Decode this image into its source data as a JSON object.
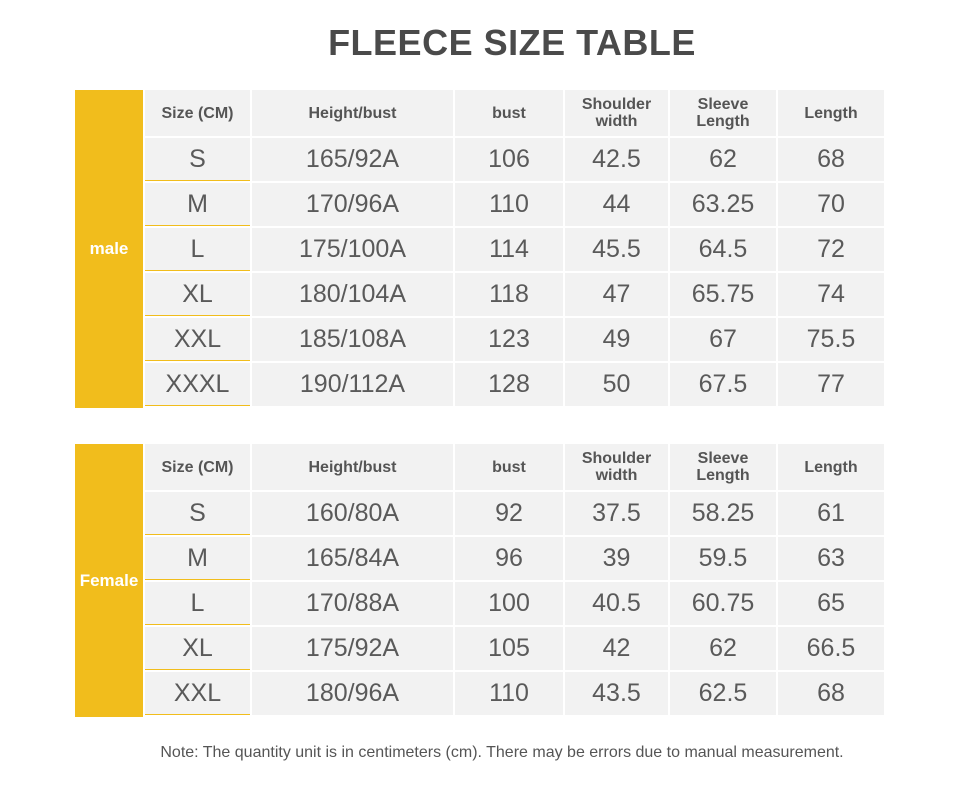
{
  "title": "FLEECE SIZE TABLE",
  "sections": [
    {
      "label": "male",
      "header": [
        "Size (CM)",
        "Height/bust",
        "bust",
        "Shoulder width",
        "Sleeve Length",
        "Length"
      ],
      "rows": [
        [
          "S",
          "165/92A",
          "106",
          "42.5",
          "62",
          "68"
        ],
        [
          "M",
          "170/96A",
          "110",
          "44",
          "63.25",
          "70"
        ],
        [
          "L",
          "175/100A",
          "114",
          "45.5",
          "64.5",
          "72"
        ],
        [
          "XL",
          "180/104A",
          "118",
          "47",
          "65.75",
          "74"
        ],
        [
          "XXL",
          "185/108A",
          "123",
          "49",
          "67",
          "75.5"
        ],
        [
          "XXXL",
          "190/112A",
          "128",
          "50",
          "67.5",
          "77"
        ]
      ]
    },
    {
      "label": "Female",
      "header": [
        "Size (CM)",
        "Height/bust",
        "bust",
        "Shoulder width",
        "Sleeve Length",
        "Length"
      ],
      "rows": [
        [
          "S",
          "160/80A",
          "92",
          "37.5",
          "58.25",
          "61"
        ],
        [
          "M",
          "165/84A",
          "96",
          "39",
          "59.5",
          "63"
        ],
        [
          "L",
          "170/88A",
          "100",
          "40.5",
          "60.75",
          "65"
        ],
        [
          "XL",
          "175/92A",
          "105",
          "42",
          "62",
          "66.5"
        ],
        [
          "XXL",
          "180/96A",
          "110",
          "43.5",
          "62.5",
          "68"
        ]
      ]
    }
  ],
  "note": "Note: The quantity unit is in centimeters (cm). There may be errors due to manual measurement."
}
